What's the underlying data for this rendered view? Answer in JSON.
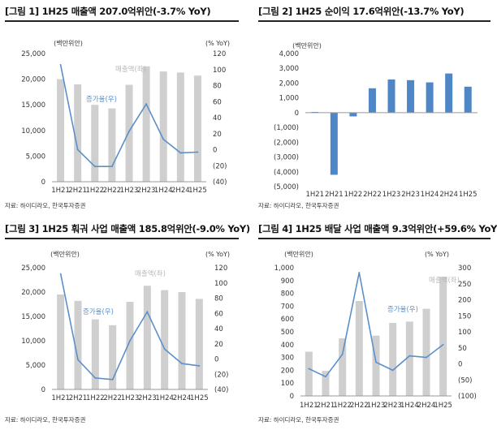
{
  "source": "자료: 하이디라오, 한국투자증권",
  "colors": {
    "bar_gray": "#cfcfcf",
    "line_blue": "#5b8fc9",
    "bar_blue": "#4f86c6",
    "label_gray": "#b8b8b8",
    "axis": "#999999"
  },
  "chart_data": [
    {
      "title": "[그림 1] 1H25 매출액 207.0억위안(-3.7% YoY)",
      "type": "bar",
      "categories": [
        "1H21",
        "2H21",
        "1H22",
        "2H22",
        "1H23",
        "2H23",
        "1H24",
        "2H24",
        "1H25"
      ],
      "left_unit": "(백만위안)",
      "right_unit": "(% YoY)",
      "ylim_left": [
        0,
        25000
      ],
      "yticks_left": [
        "0",
        "5,000",
        "10,000",
        "15,000",
        "20,000",
        "25,000"
      ],
      "ylim_right": [
        -40,
        120
      ],
      "yticks_right": [
        "(40)",
        "(20)",
        "0",
        "20",
        "40",
        "60",
        "80",
        "100",
        "120"
      ],
      "series": [
        {
          "name": "매출액(좌)",
          "type": "bar",
          "axis": "left",
          "values": [
            20000,
            19000,
            15000,
            14300,
            18900,
            22500,
            21500,
            21300,
            20700
          ]
        },
        {
          "name": "증가율(우)",
          "type": "line",
          "axis": "right",
          "values": [
            106,
            0,
            -21,
            -21,
            23,
            57,
            13,
            -4,
            -3
          ]
        }
      ]
    },
    {
      "title": "[그림 2] 1H25 순이익 17.6억위안(-13.7% YoY)",
      "type": "bar",
      "categories": [
        "1H21",
        "2H21",
        "1H22",
        "2H22",
        "1H23",
        "2H23",
        "1H24",
        "2H24",
        "1H25"
      ],
      "left_unit": "(백만위안)",
      "ylim_left": [
        -5000,
        4000
      ],
      "yticks_left": [
        "(5,000)",
        "(4,000)",
        "(3,000)",
        "(2,000)",
        "(1,000)",
        "0",
        "1,000",
        "2,000",
        "3,000",
        "4,000"
      ],
      "series": [
        {
          "type": "bar",
          "axis": "left",
          "values": [
            50,
            -4200,
            -250,
            1650,
            2250,
            2200,
            2050,
            2650,
            1760
          ]
        }
      ]
    },
    {
      "title": "[그림 3] 1H25 훠궈 사업 매출액 185.8억위안(-9.0% YoY)",
      "type": "bar",
      "categories": [
        "1H21",
        "2H21",
        "1H22",
        "2H22",
        "1H23",
        "2H23",
        "1H24",
        "2H24",
        "1H25"
      ],
      "left_unit": "(백만위안)",
      "right_unit": "(% YoY)",
      "ylim_left": [
        0,
        25000
      ],
      "yticks_left": [
        "0",
        "5,000",
        "10,000",
        "15,000",
        "20,000",
        "25,000"
      ],
      "ylim_right": [
        -40,
        120
      ],
      "yticks_right": [
        "(40)",
        "(20)",
        "0",
        "20",
        "40",
        "60",
        "80",
        "100",
        "120"
      ],
      "series": [
        {
          "name": "매출액(좌)",
          "type": "bar",
          "axis": "left",
          "values": [
            19500,
            18200,
            14400,
            13200,
            18000,
            21300,
            20400,
            20000,
            18600
          ]
        },
        {
          "name": "증가율(우)",
          "type": "line",
          "axis": "right",
          "values": [
            112,
            -1,
            -25,
            -27,
            24,
            62,
            13,
            -6,
            -9
          ]
        }
      ]
    },
    {
      "title": "[그림 4] 1H25 배달 사업 매출액 9.3억위안(+59.6% YoY)",
      "type": "bar",
      "categories": [
        "1H21",
        "2H21",
        "1H22",
        "2H22",
        "1H23",
        "2H23",
        "1H24",
        "2H24",
        "1H25"
      ],
      "left_unit": "(백만위안)",
      "right_unit": "(% YoY)",
      "ylim_left": [
        0,
        1000
      ],
      "yticks_left": [
        "0",
        "100",
        "200",
        "300",
        "400",
        "500",
        "600",
        "700",
        "800",
        "900",
        "1,000"
      ],
      "ylim_right": [
        -100,
        300
      ],
      "yticks_right": [
        "(100)",
        "(50)",
        "0",
        "50",
        "100",
        "150",
        "200",
        "250",
        "300"
      ],
      "series": [
        {
          "name": "매출액(좌)",
          "type": "bar",
          "axis": "left",
          "values": [
            345,
            195,
            450,
            740,
            470,
            570,
            580,
            680,
            930
          ]
        },
        {
          "name": "증가율(우)",
          "type": "line",
          "axis": "right",
          "values": [
            -15,
            -40,
            30,
            285,
            5,
            -20,
            25,
            20,
            60
          ]
        }
      ]
    }
  ]
}
